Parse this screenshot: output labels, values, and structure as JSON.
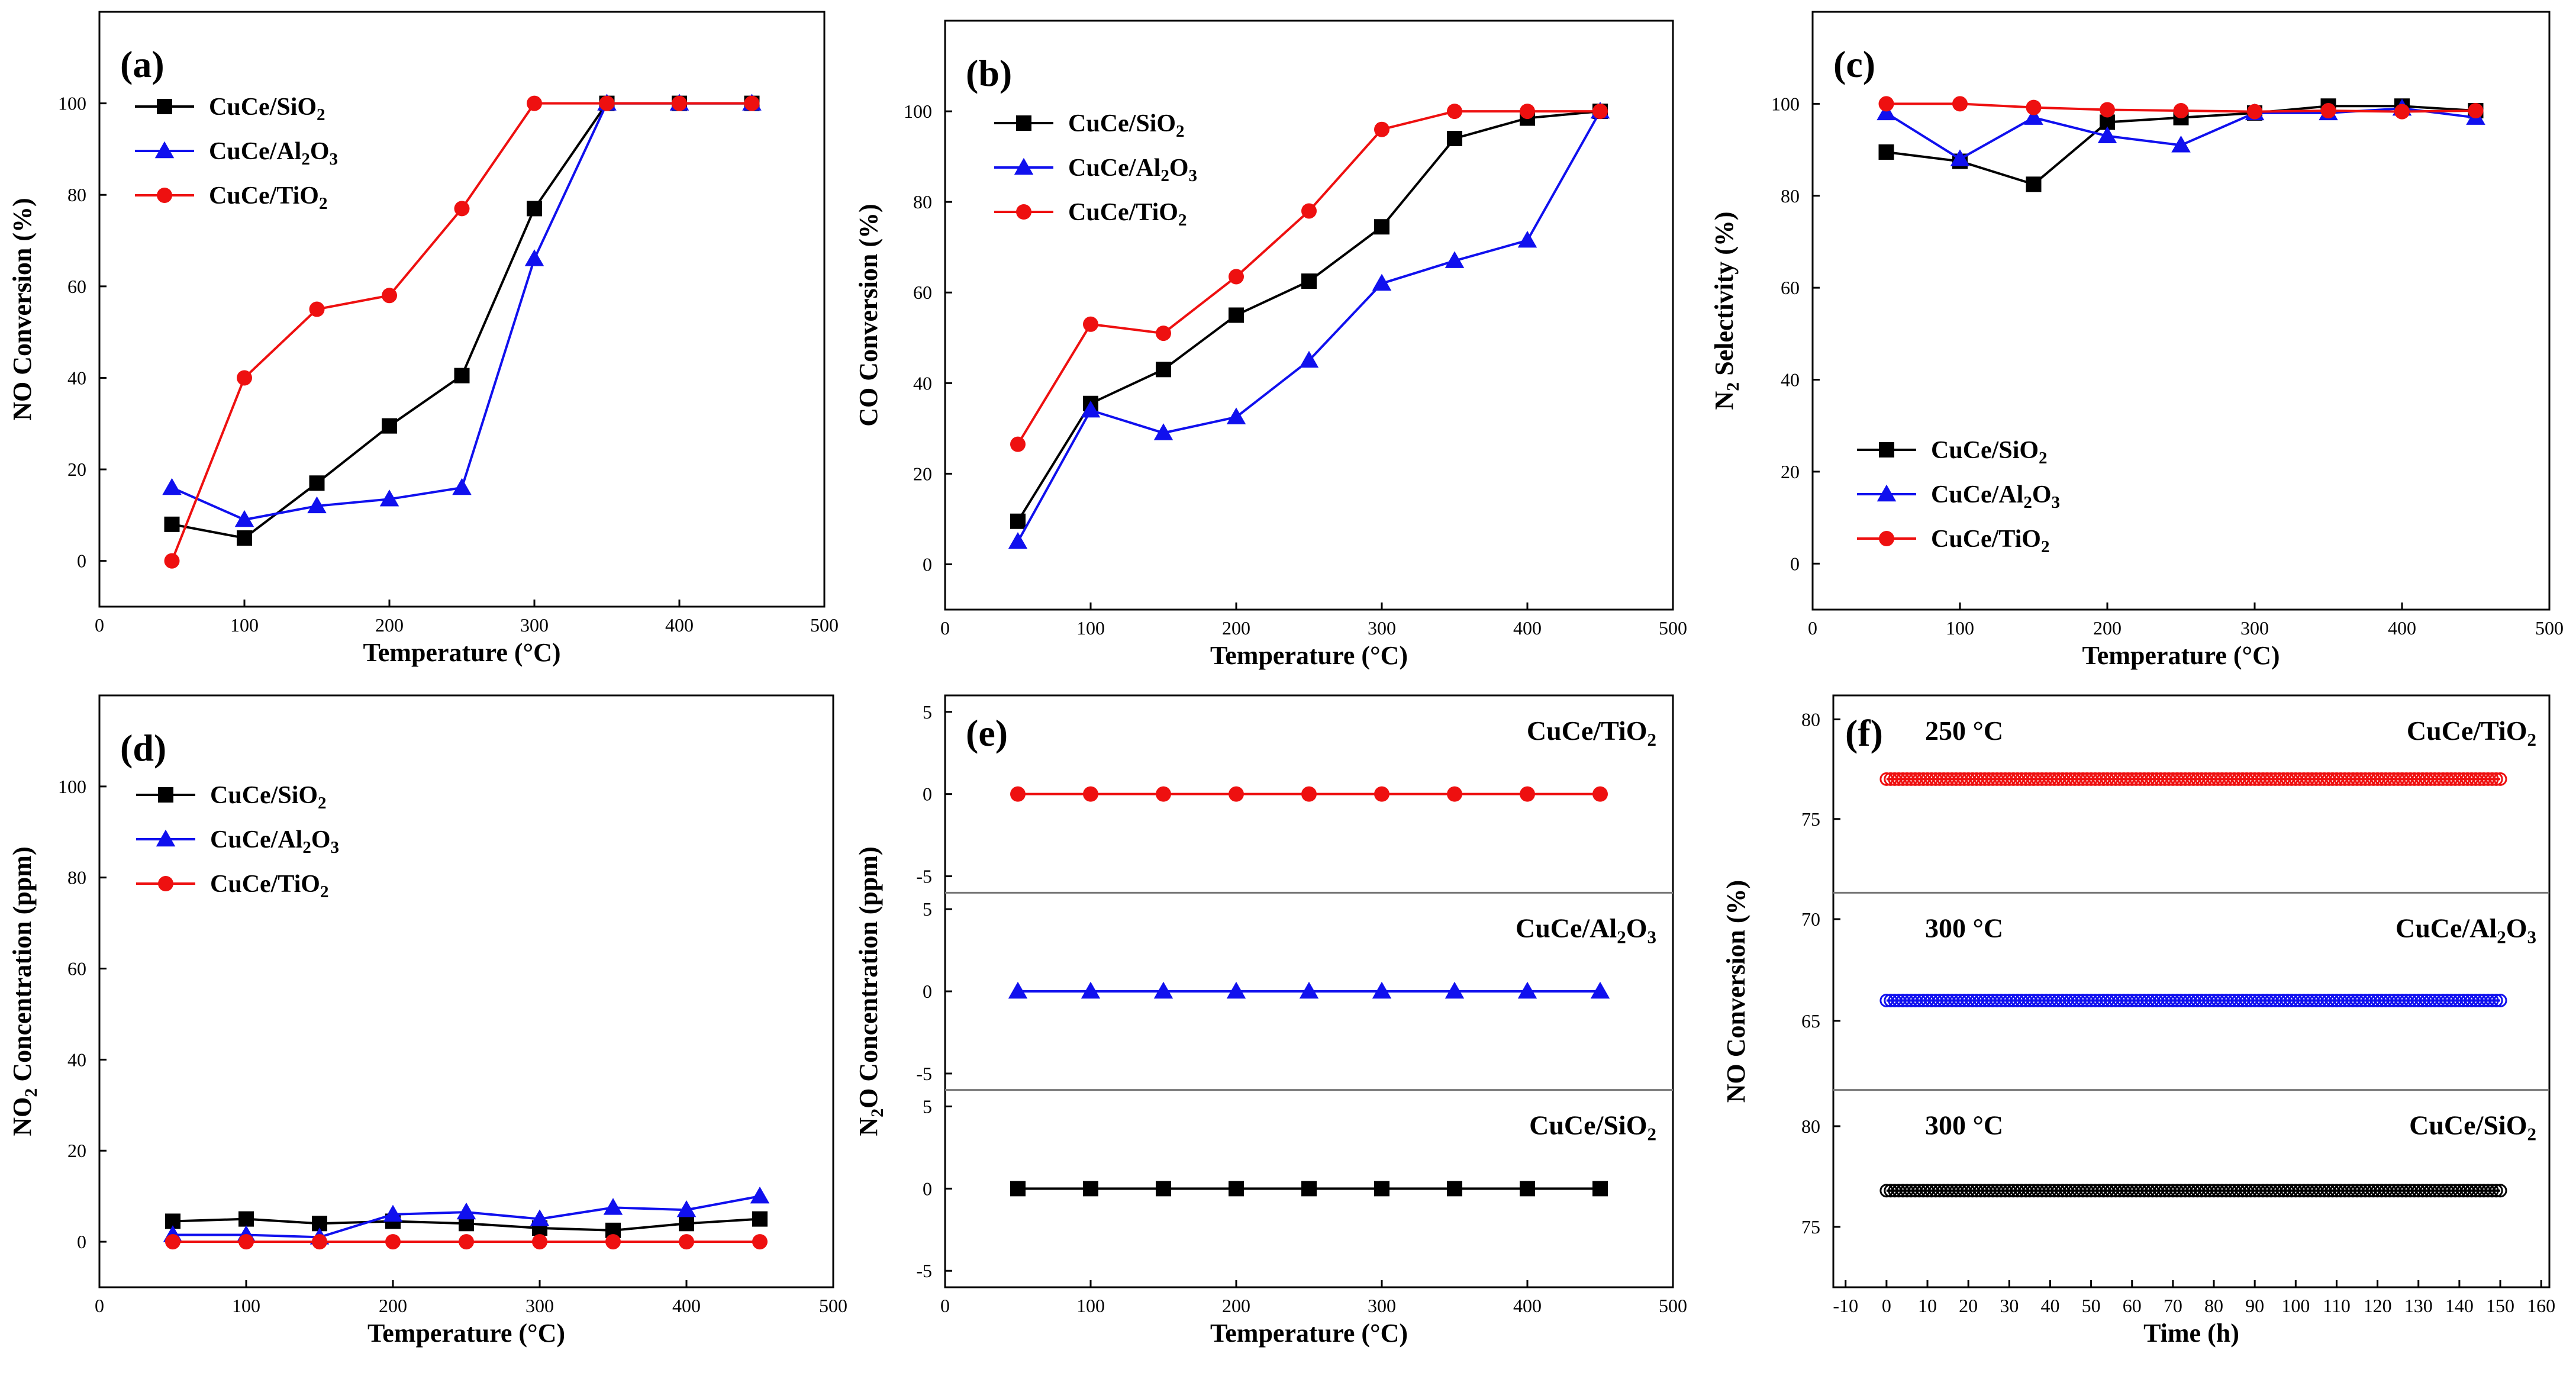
{
  "colors": {
    "SiO2": "#000000",
    "Al2O3": "#1010ee",
    "TiO2": "#ee1010",
    "divider": "#777777"
  },
  "legend_labels": {
    "SiO2": [
      "CuCe/SiO",
      "2",
      ""
    ],
    "Al2O3": [
      "CuCe/Al",
      "2",
      "O",
      "3",
      ""
    ],
    "TiO2": [
      "CuCe/TiO",
      "2",
      ""
    ]
  },
  "chart_data": [
    {
      "panel": "(a)",
      "type": "line",
      "xlabel": "Temperature (°C)",
      "ylabel": "NO Conversion (%)",
      "xlim": [
        0,
        500
      ],
      "ylim": [
        -10,
        120
      ],
      "xticks": [
        0,
        100,
        200,
        300,
        400,
        500
      ],
      "yticks": [
        0,
        20,
        40,
        60,
        80,
        100
      ],
      "x": [
        50,
        100,
        150,
        200,
        250,
        300,
        350,
        400,
        450
      ],
      "series": [
        {
          "key": "SiO2",
          "name": "CuCe/SiO2",
          "marker": "square",
          "values": [
            8,
            5,
            17,
            29.5,
            40.5,
            77,
            100,
            100,
            100
          ]
        },
        {
          "key": "Al2O3",
          "name": "CuCe/Al2O3",
          "marker": "triangle",
          "values": [
            16,
            9,
            12,
            13.5,
            16,
            66,
            100,
            100,
            100
          ]
        },
        {
          "key": "TiO2",
          "name": "CuCe/TiO2",
          "marker": "circle",
          "values": [
            0,
            40,
            55,
            58,
            77,
            100,
            100,
            100,
            100
          ]
        }
      ],
      "legend": "top-left"
    },
    {
      "panel": "(b)",
      "type": "line",
      "xlabel": "Temperature (°C)",
      "ylabel": "CO Conversion (%)",
      "xlim": [
        0,
        500
      ],
      "ylim": [
        -10,
        120
      ],
      "xticks": [
        0,
        100,
        200,
        300,
        400,
        500
      ],
      "yticks": [
        0,
        20,
        40,
        60,
        80,
        100
      ],
      "x": [
        50,
        100,
        150,
        200,
        250,
        300,
        350,
        400,
        450
      ],
      "series": [
        {
          "key": "SiO2",
          "name": "CuCe/SiO2",
          "marker": "square",
          "values": [
            9.5,
            35.5,
            43,
            55,
            62.5,
            74.5,
            94,
            98.5,
            100
          ]
        },
        {
          "key": "Al2O3",
          "name": "CuCe/Al2O3",
          "marker": "triangle",
          "values": [
            5,
            34,
            29,
            32.5,
            45,
            62,
            67,
            71.5,
            100
          ]
        },
        {
          "key": "TiO2",
          "name": "CuCe/TiO2",
          "marker": "circle",
          "values": [
            26.5,
            53,
            51,
            63.5,
            78,
            96,
            100,
            100,
            100
          ]
        }
      ],
      "legend": "top-left"
    },
    {
      "panel": "(c)",
      "type": "line",
      "xlabel": "Temperature (°C)",
      "ylabel": [
        "N",
        "2",
        " Selectivity (%)"
      ],
      "xlim": [
        0,
        500
      ],
      "ylim": [
        -10,
        120
      ],
      "xticks": [
        0,
        100,
        200,
        300,
        400,
        500
      ],
      "yticks": [
        0,
        20,
        40,
        60,
        80,
        100
      ],
      "x": [
        50,
        100,
        150,
        200,
        250,
        300,
        350,
        400,
        450
      ],
      "series": [
        {
          "key": "SiO2",
          "name": "CuCe/SiO2",
          "marker": "square",
          "values": [
            89.5,
            87.5,
            82.5,
            96,
            97,
            98,
            99.5,
            99.5,
            98.5
          ]
        },
        {
          "key": "Al2O3",
          "name": "CuCe/Al2O3",
          "marker": "triangle",
          "values": [
            98,
            88,
            97,
            93,
            91,
            98,
            98,
            99,
            97
          ]
        },
        {
          "key": "TiO2",
          "name": "CuCe/TiO2",
          "marker": "circle",
          "values": [
            100,
            100,
            99.2,
            98.7,
            98.5,
            98.3,
            98.5,
            98.3,
            98.5
          ]
        }
      ],
      "legend": "bottom-left"
    },
    {
      "panel": "(d)",
      "type": "line",
      "xlabel": "Temperature (°C)",
      "ylabel": [
        "NO",
        "2",
        " Concentration (ppm)"
      ],
      "xlim": [
        0,
        500
      ],
      "ylim": [
        -10,
        120
      ],
      "xticks": [
        0,
        100,
        200,
        300,
        400,
        500
      ],
      "yticks": [
        0,
        20,
        40,
        60,
        80,
        100
      ],
      "x": [
        50,
        100,
        150,
        200,
        250,
        300,
        350,
        400,
        450
      ],
      "series": [
        {
          "key": "SiO2",
          "name": "CuCe/SiO2",
          "marker": "square",
          "values": [
            4.5,
            5,
            4,
            4.5,
            4,
            3,
            2.5,
            4,
            5
          ]
        },
        {
          "key": "Al2O3",
          "name": "CuCe/Al2O3",
          "marker": "triangle",
          "values": [
            1.5,
            1.5,
            1,
            6,
            6.5,
            5,
            7.5,
            7,
            10
          ]
        },
        {
          "key": "TiO2",
          "name": "CuCe/TiO2",
          "marker": "circle",
          "values": [
            0,
            0,
            0,
            0,
            0,
            0,
            0,
            0,
            0
          ]
        }
      ],
      "legend": "top-left"
    },
    {
      "panel": "(e)",
      "type": "stacked-line",
      "xlabel": "Temperature (°C)",
      "ylabel": [
        "N",
        "2",
        "O Concentration (ppm)"
      ],
      "xlim": [
        0,
        500
      ],
      "xticks": [
        0,
        100,
        200,
        300,
        400,
        500
      ],
      "x": [
        50,
        100,
        150,
        200,
        250,
        300,
        350,
        400,
        450
      ],
      "subplots": [
        {
          "key": "TiO2",
          "label": [
            "CuCe/TiO",
            "2",
            ""
          ],
          "marker": "circle",
          "ylim": [
            -6,
            6
          ],
          "yticks": [
            5,
            0,
            -5
          ],
          "values": [
            0,
            0,
            0,
            0,
            0,
            0,
            0,
            0,
            0
          ]
        },
        {
          "key": "Al2O3",
          "label": [
            "CuCe/Al",
            "2",
            "O",
            "3",
            ""
          ],
          "marker": "triangle",
          "ylim": [
            -6,
            6
          ],
          "yticks": [
            5,
            0,
            -5
          ],
          "values": [
            0,
            0,
            0,
            0,
            0,
            0,
            0,
            0,
            0
          ]
        },
        {
          "key": "SiO2",
          "label": [
            "CuCe/SiO",
            "2",
            ""
          ],
          "marker": "square",
          "ylim": [
            -6,
            6
          ],
          "yticks": [
            5,
            0,
            -5
          ],
          "values": [
            0,
            0,
            0,
            0,
            0,
            0,
            0,
            0,
            0
          ]
        }
      ]
    },
    {
      "panel": "(f)",
      "type": "stacked-line",
      "xlabel": "Time (h)",
      "ylabel": "NO Conversion (%)",
      "xlim": [
        -13,
        162
      ],
      "xticks": [
        -10,
        0,
        10,
        20,
        30,
        40,
        50,
        60,
        70,
        80,
        90,
        100,
        110,
        120,
        130,
        140,
        150,
        160
      ],
      "time_range": [
        0,
        150
      ],
      "point_count": 151,
      "subplots": [
        {
          "key": "TiO2",
          "temperature": "250 °C",
          "label": [
            "CuCe/TiO",
            "2",
            ""
          ],
          "marker": "circle",
          "ylim": [
            71.3,
            81.2
          ],
          "yticks": [
            80,
            75
          ],
          "value": 77
        },
        {
          "key": "Al2O3",
          "temperature": "300 °C",
          "label": [
            "CuCe/Al",
            "2",
            "O",
            "3",
            ""
          ],
          "marker": "circle",
          "ylim": [
            61.6,
            71.3
          ],
          "yticks": [
            70,
            65
          ],
          "value": 66
        },
        {
          "key": "SiO2",
          "temperature": "300 °C",
          "label": [
            "CuCe/SiO",
            "2",
            ""
          ],
          "marker": "circle",
          "ylim": [
            72,
            81.8
          ],
          "yticks": [
            80,
            75
          ],
          "value": 76.8
        }
      ]
    }
  ]
}
